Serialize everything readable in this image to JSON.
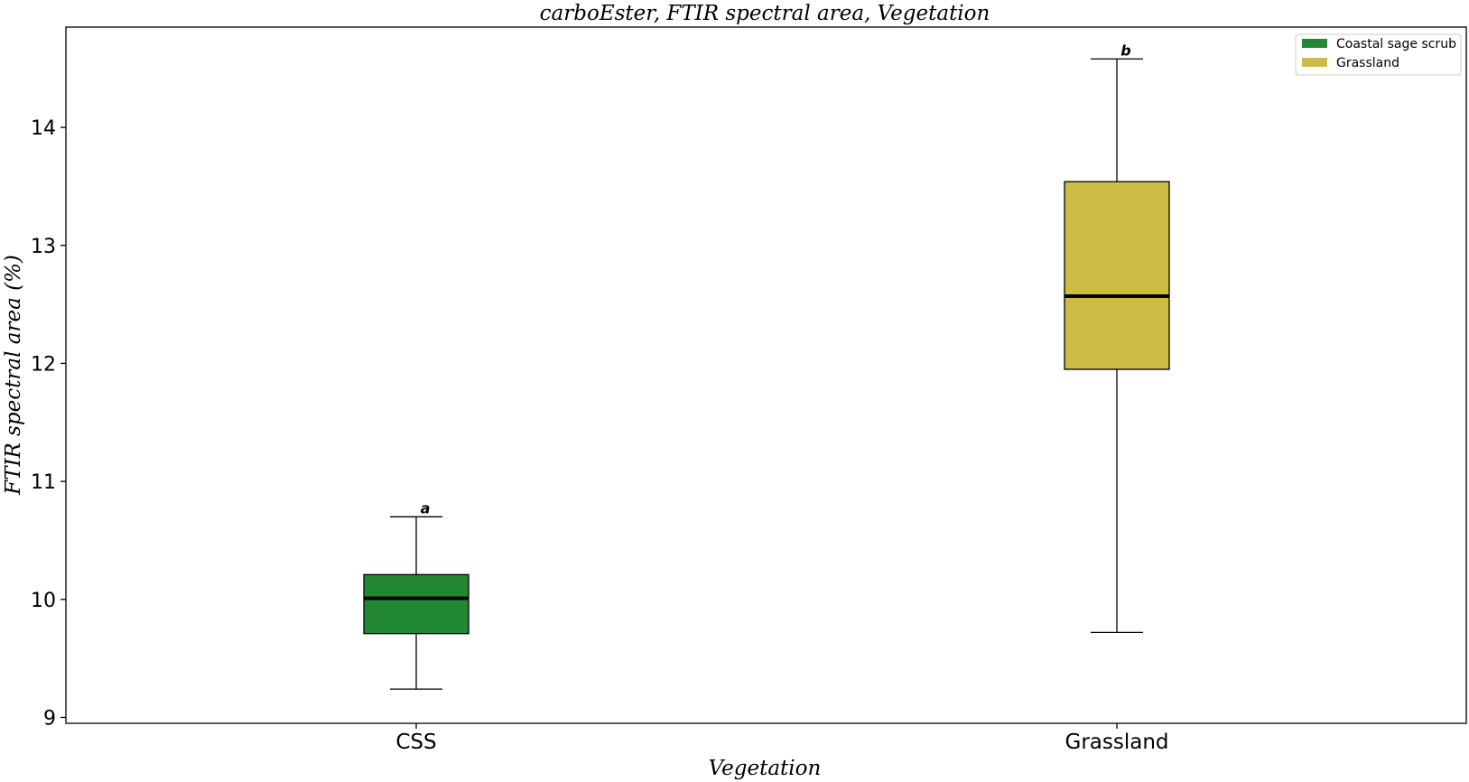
{
  "chart_data": {
    "type": "box",
    "title": "carboEster, FTIR spectral area, Vegetation",
    "xlabel": "Vegetation",
    "ylabel": "FTIR spectral area (%)",
    "ylim": [
      8.95,
      14.85
    ],
    "yticks": [
      "9",
      "10",
      "11",
      "12",
      "13",
      "14"
    ],
    "grid": false,
    "legend_position": "top-right",
    "categories": [
      "CSS",
      "Grassland"
    ],
    "series": [
      {
        "name": "Coastal sage scrub",
        "category": "CSS",
        "color": "#228833",
        "whisker_low": 9.24,
        "q1": 9.71,
        "median": 10.01,
        "q3": 10.21,
        "whisker_high": 10.7,
        "significance": "a"
      },
      {
        "name": "Grassland",
        "category": "Grassland",
        "color": "#ccbb44",
        "whisker_low": 9.72,
        "q1": 11.95,
        "median": 12.57,
        "q3": 13.54,
        "whisker_high": 14.58,
        "significance": "b"
      }
    ]
  }
}
